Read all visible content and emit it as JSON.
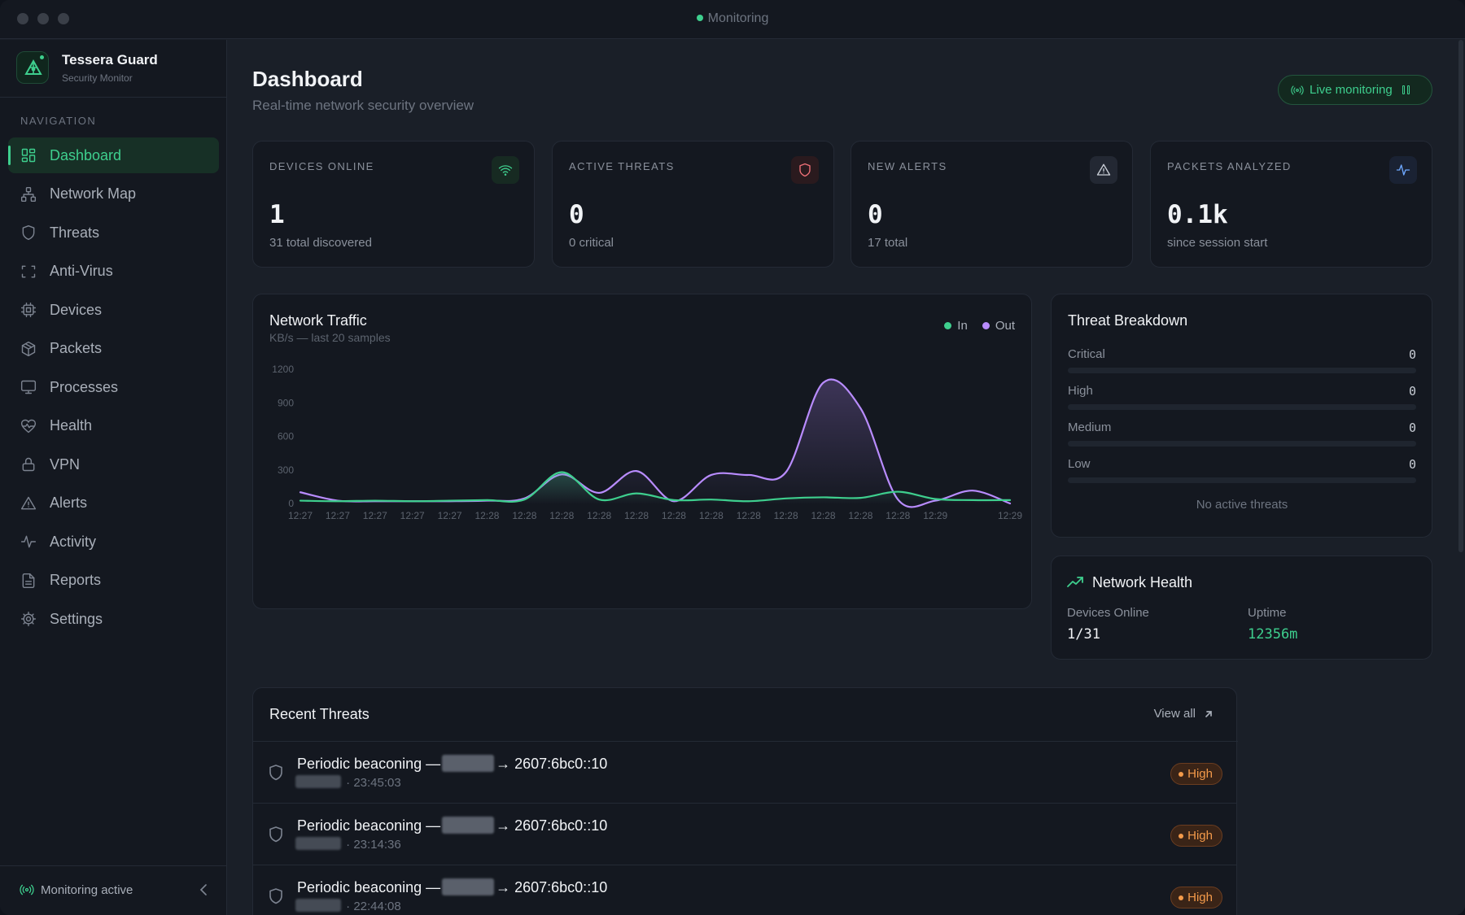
{
  "window": {
    "title": "Monitoring"
  },
  "brand": {
    "name": "Tessera Guard",
    "subtitle": "Security Monitor"
  },
  "sidebar": {
    "heading": "NAVIGATION",
    "items": [
      {
        "label": "Dashboard",
        "icon": "dashboard-grid-icon",
        "active": true
      },
      {
        "label": "Network Map",
        "icon": "network-icon"
      },
      {
        "label": "Threats",
        "icon": "shield-icon"
      },
      {
        "label": "Anti-Virus",
        "icon": "scan-icon"
      },
      {
        "label": "Devices",
        "icon": "chip-icon"
      },
      {
        "label": "Packets",
        "icon": "package-icon"
      },
      {
        "label": "Processes",
        "icon": "monitor-icon"
      },
      {
        "label": "Health",
        "icon": "heart-pulse-icon"
      },
      {
        "label": "VPN",
        "icon": "lock-icon"
      },
      {
        "label": "Alerts",
        "icon": "warning-icon"
      },
      {
        "label": "Activity",
        "icon": "activity-icon"
      },
      {
        "label": "Reports",
        "icon": "document-icon"
      },
      {
        "label": "Settings",
        "icon": "gear-icon"
      }
    ],
    "footer": {
      "status": "Monitoring active"
    }
  },
  "header": {
    "title": "Dashboard",
    "subtitle": "Real-time network security overview",
    "live_button": "Live monitoring"
  },
  "stats": [
    {
      "label": "DEVICES ONLINE",
      "value": "1",
      "sub": "31 total discovered",
      "icon": "wifi-icon",
      "color": "#3ecf8e",
      "bg": "#172a22"
    },
    {
      "label": "ACTIVE THREATS",
      "value": "0",
      "sub": "0 critical",
      "icon": "shield-icon",
      "color": "#f07178",
      "bg": "#2a1a1e"
    },
    {
      "label": "NEW ALERTS",
      "value": "0",
      "sub": "17 total",
      "icon": "warning-icon",
      "color": "#c9ced6",
      "bg": "#232833"
    },
    {
      "label": "PACKETS ANALYZED",
      "value": "0.1k",
      "sub": "since session start",
      "icon": "activity-icon",
      "color": "#6ea8fe",
      "bg": "#1a2233"
    }
  ],
  "traffic": {
    "title": "Network Traffic",
    "subtitle": "KB/s — last 20 samples",
    "legend": {
      "in": "In",
      "out": "Out"
    }
  },
  "chart_data": {
    "type": "line",
    "title": "Network Traffic",
    "subtitle": "KB/s — last 20 samples",
    "x": [
      "12:27",
      "12:27",
      "12:27",
      "12:27",
      "12:27",
      "12:28",
      "12:28",
      "12:28",
      "12:28",
      "12:28",
      "12:28",
      "12:28",
      "12:28",
      "12:28",
      "12:28",
      "12:28",
      "12:28",
      "12:29",
      "",
      "12:29"
    ],
    "yticks": [
      0,
      300,
      600,
      900,
      1200
    ],
    "ylim": [
      0,
      1200
    ],
    "series": [
      {
        "name": "In",
        "color": "#3ecf8e",
        "values": [
          25,
          20,
          25,
          20,
          25,
          30,
          35,
          280,
          35,
          90,
          30,
          35,
          20,
          45,
          55,
          50,
          105,
          40,
          30,
          30
        ]
      },
      {
        "name": "Out",
        "color": "#b98cff",
        "values": [
          100,
          25,
          20,
          20,
          20,
          25,
          45,
          260,
          95,
          290,
          20,
          255,
          255,
          280,
          1080,
          850,
          35,
          25,
          115,
          0
        ]
      }
    ],
    "legend": "top-right",
    "grid": false
  },
  "threat_breakdown": {
    "title": "Threat Breakdown",
    "rows": [
      {
        "name": "Critical",
        "value": "0",
        "fraction": 0,
        "color": "#f07178"
      },
      {
        "name": "High",
        "value": "0",
        "fraction": 0,
        "color": "#f39a4a"
      },
      {
        "name": "Medium",
        "value": "0",
        "fraction": 0,
        "color": "#e6c35c"
      },
      {
        "name": "Low",
        "value": "0",
        "fraction": 0,
        "color": "#6ea8fe"
      }
    ],
    "empty": "No active threats"
  },
  "network_health": {
    "title": "Network Health",
    "devices_label": "Devices Online",
    "devices_value": "1/31",
    "uptime_label": "Uptime",
    "uptime_value": "12356m"
  },
  "recent_threats": {
    "title": "Recent Threats",
    "view_all": "View all",
    "rows": [
      {
        "title_prefix": "Periodic beaconing —",
        "title_suffix": "→ 2607:6bc0::10",
        "time": "· 23:45:03",
        "severity": "High"
      },
      {
        "title_prefix": "Periodic beaconing —",
        "title_suffix": "→ 2607:6bc0::10",
        "time": "· 23:14:36",
        "severity": "High"
      },
      {
        "title_prefix": "Periodic beaconing —",
        "title_suffix": "→ 2607:6bc0::10",
        "time": "· 22:44:08",
        "severity": "High"
      }
    ]
  }
}
